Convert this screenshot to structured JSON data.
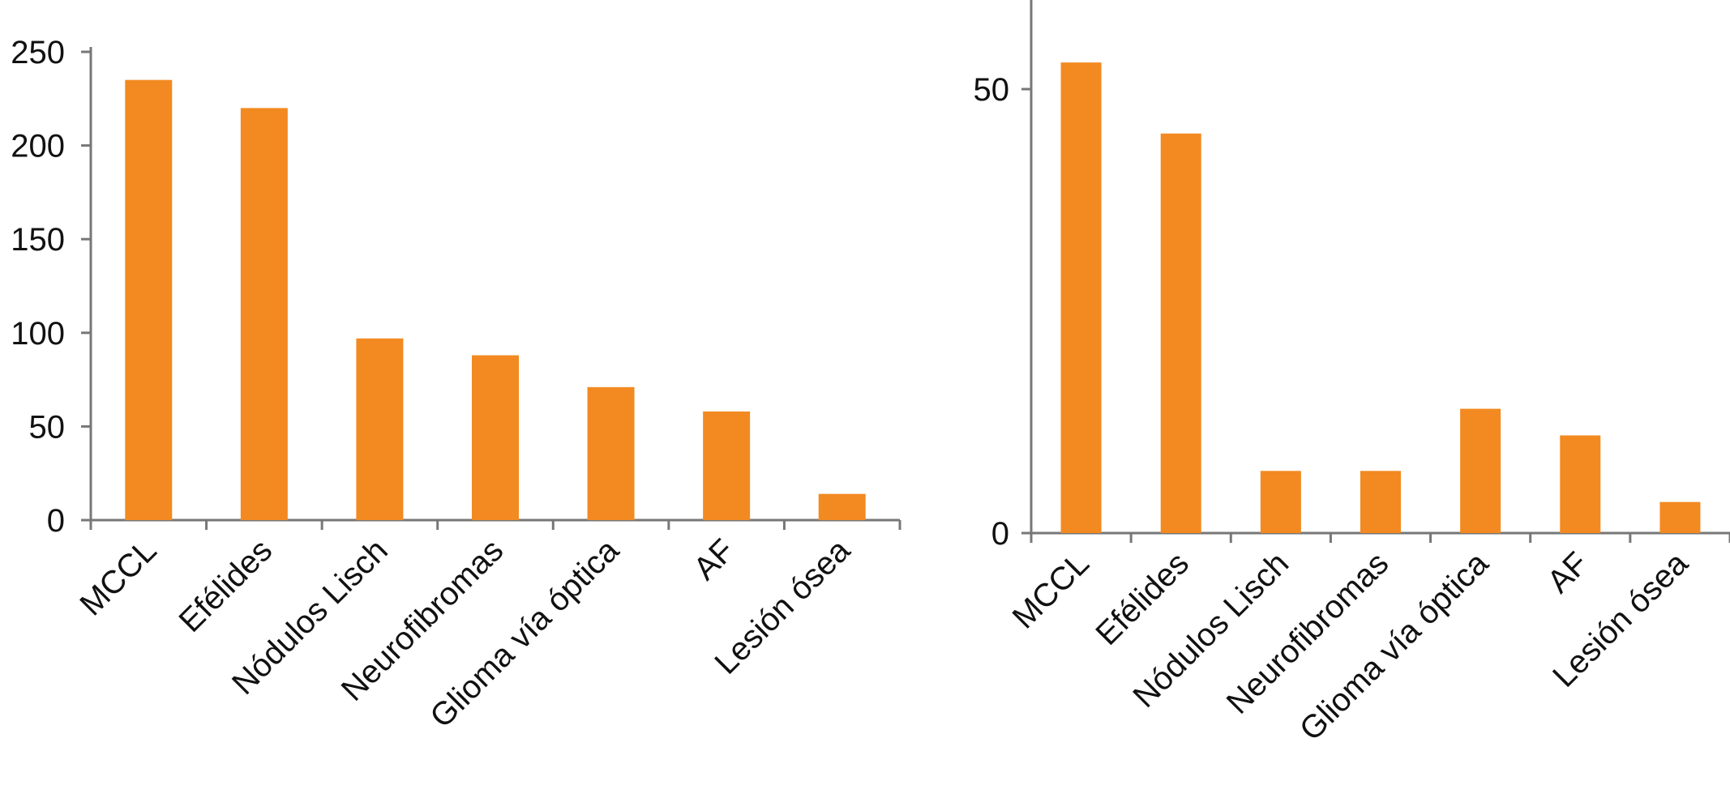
{
  "style": {
    "bar_color": "#F28A21",
    "axis_color": "#777777"
  },
  "chart_data": [
    {
      "type": "bar",
      "categories": [
        "MCCL",
        "Efélides",
        "Nódulos Lisch",
        "Neurofibromas",
        "Glioma vía óptica",
        "AF",
        "Lesión ósea"
      ],
      "values": [
        235,
        220,
        97,
        88,
        71,
        58,
        14
      ],
      "ylim": [
        0,
        250
      ],
      "yticks": [
        0,
        50,
        100,
        150,
        200,
        250
      ],
      "title": "",
      "xlabel": "",
      "ylabel": ""
    },
    {
      "type": "bar",
      "categories": [
        "MCCL",
        "Efélides",
        "Nódulos Lisch",
        "Neurofibromas",
        "Glioma vía óptica",
        "AF",
        "Lesión ósea"
      ],
      "values": [
        53,
        45,
        7,
        7,
        14,
        11,
        3.5
      ],
      "ylim": [
        0,
        60
      ],
      "yticks": [
        0,
        50
      ],
      "title": "",
      "xlabel": "",
      "ylabel": ""
    }
  ]
}
